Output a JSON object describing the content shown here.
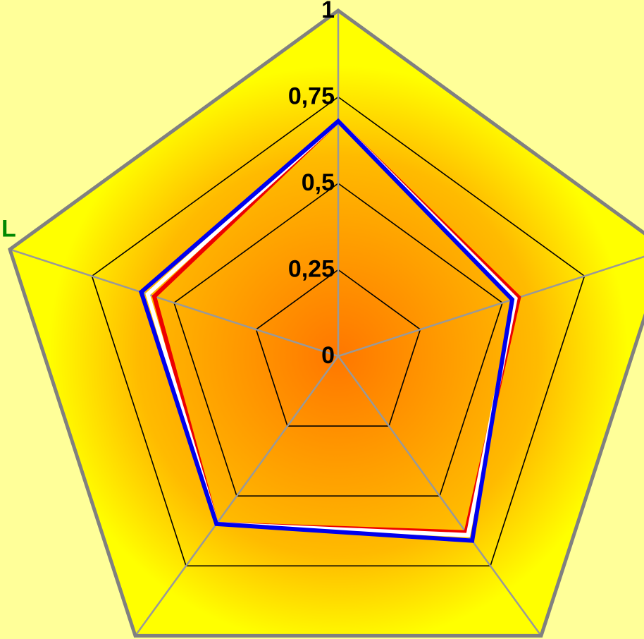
{
  "chart_data": {
    "type": "radar",
    "axes_count": 5,
    "categories": [
      "",
      "",
      "",
      "",
      "L"
    ],
    "rmin": 0,
    "rmax": 1,
    "ticks": [
      {
        "value": 0,
        "label": "0"
      },
      {
        "value": 0.25,
        "label": "0,25"
      },
      {
        "value": 0.5,
        "label": "0,5"
      },
      {
        "value": 0.75,
        "label": "0,75"
      },
      {
        "value": 1,
        "label": "1"
      }
    ],
    "grid": true,
    "legend": "none",
    "series": [
      {
        "values": [
          0.68,
          0.55,
          0.63,
          0.6,
          0.56
        ],
        "color": "#EE0000"
      },
      {
        "values": [
          0.68,
          0.54,
          0.64,
          0.6,
          0.58
        ],
        "color": "#FFFFFF"
      },
      {
        "values": [
          0.68,
          0.53,
          0.66,
          0.6,
          0.6
        ],
        "color": "#0000EE"
      }
    ],
    "colors": {
      "page_background": "#FFFF99",
      "plot_outer": "#FFFF00",
      "plot_center": "#FF7700",
      "outer_frame": "#808080",
      "spokes": "#999999",
      "grid_lines": "#000000"
    }
  }
}
